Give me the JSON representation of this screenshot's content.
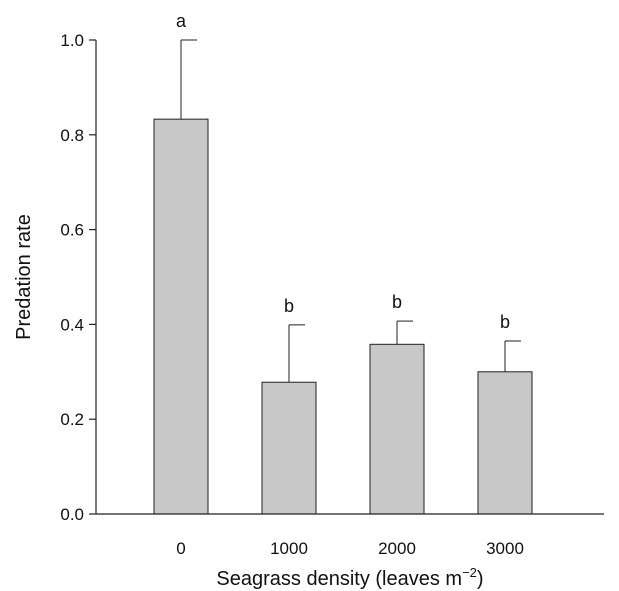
{
  "chart_data": {
    "type": "bar",
    "title": "",
    "xlabel": "Seagrass density (leaves m",
    "xlabel_unit_exponent": "−2",
    "xlabel_suffix": ")",
    "ylabel": "Predation rate",
    "ylim": [
      0,
      1.0
    ],
    "yticks": [
      0.0,
      0.2,
      0.4,
      0.6,
      0.8,
      1.0
    ],
    "ytick_labels": [
      "0.0",
      "0.2",
      "0.4",
      "0.6",
      "0.8",
      "1.0"
    ],
    "categories": [
      "0",
      "1000",
      "2000",
      "3000"
    ],
    "values": [
      0.833,
      0.278,
      0.358,
      0.3
    ],
    "error_upper": [
      1.0,
      0.399,
      0.407,
      0.365
    ],
    "significance_labels": [
      "a",
      "b",
      "b",
      "b"
    ],
    "grid": false,
    "colors": {
      "bar_fill": "#c8c8c8",
      "stroke": "#222222"
    }
  }
}
